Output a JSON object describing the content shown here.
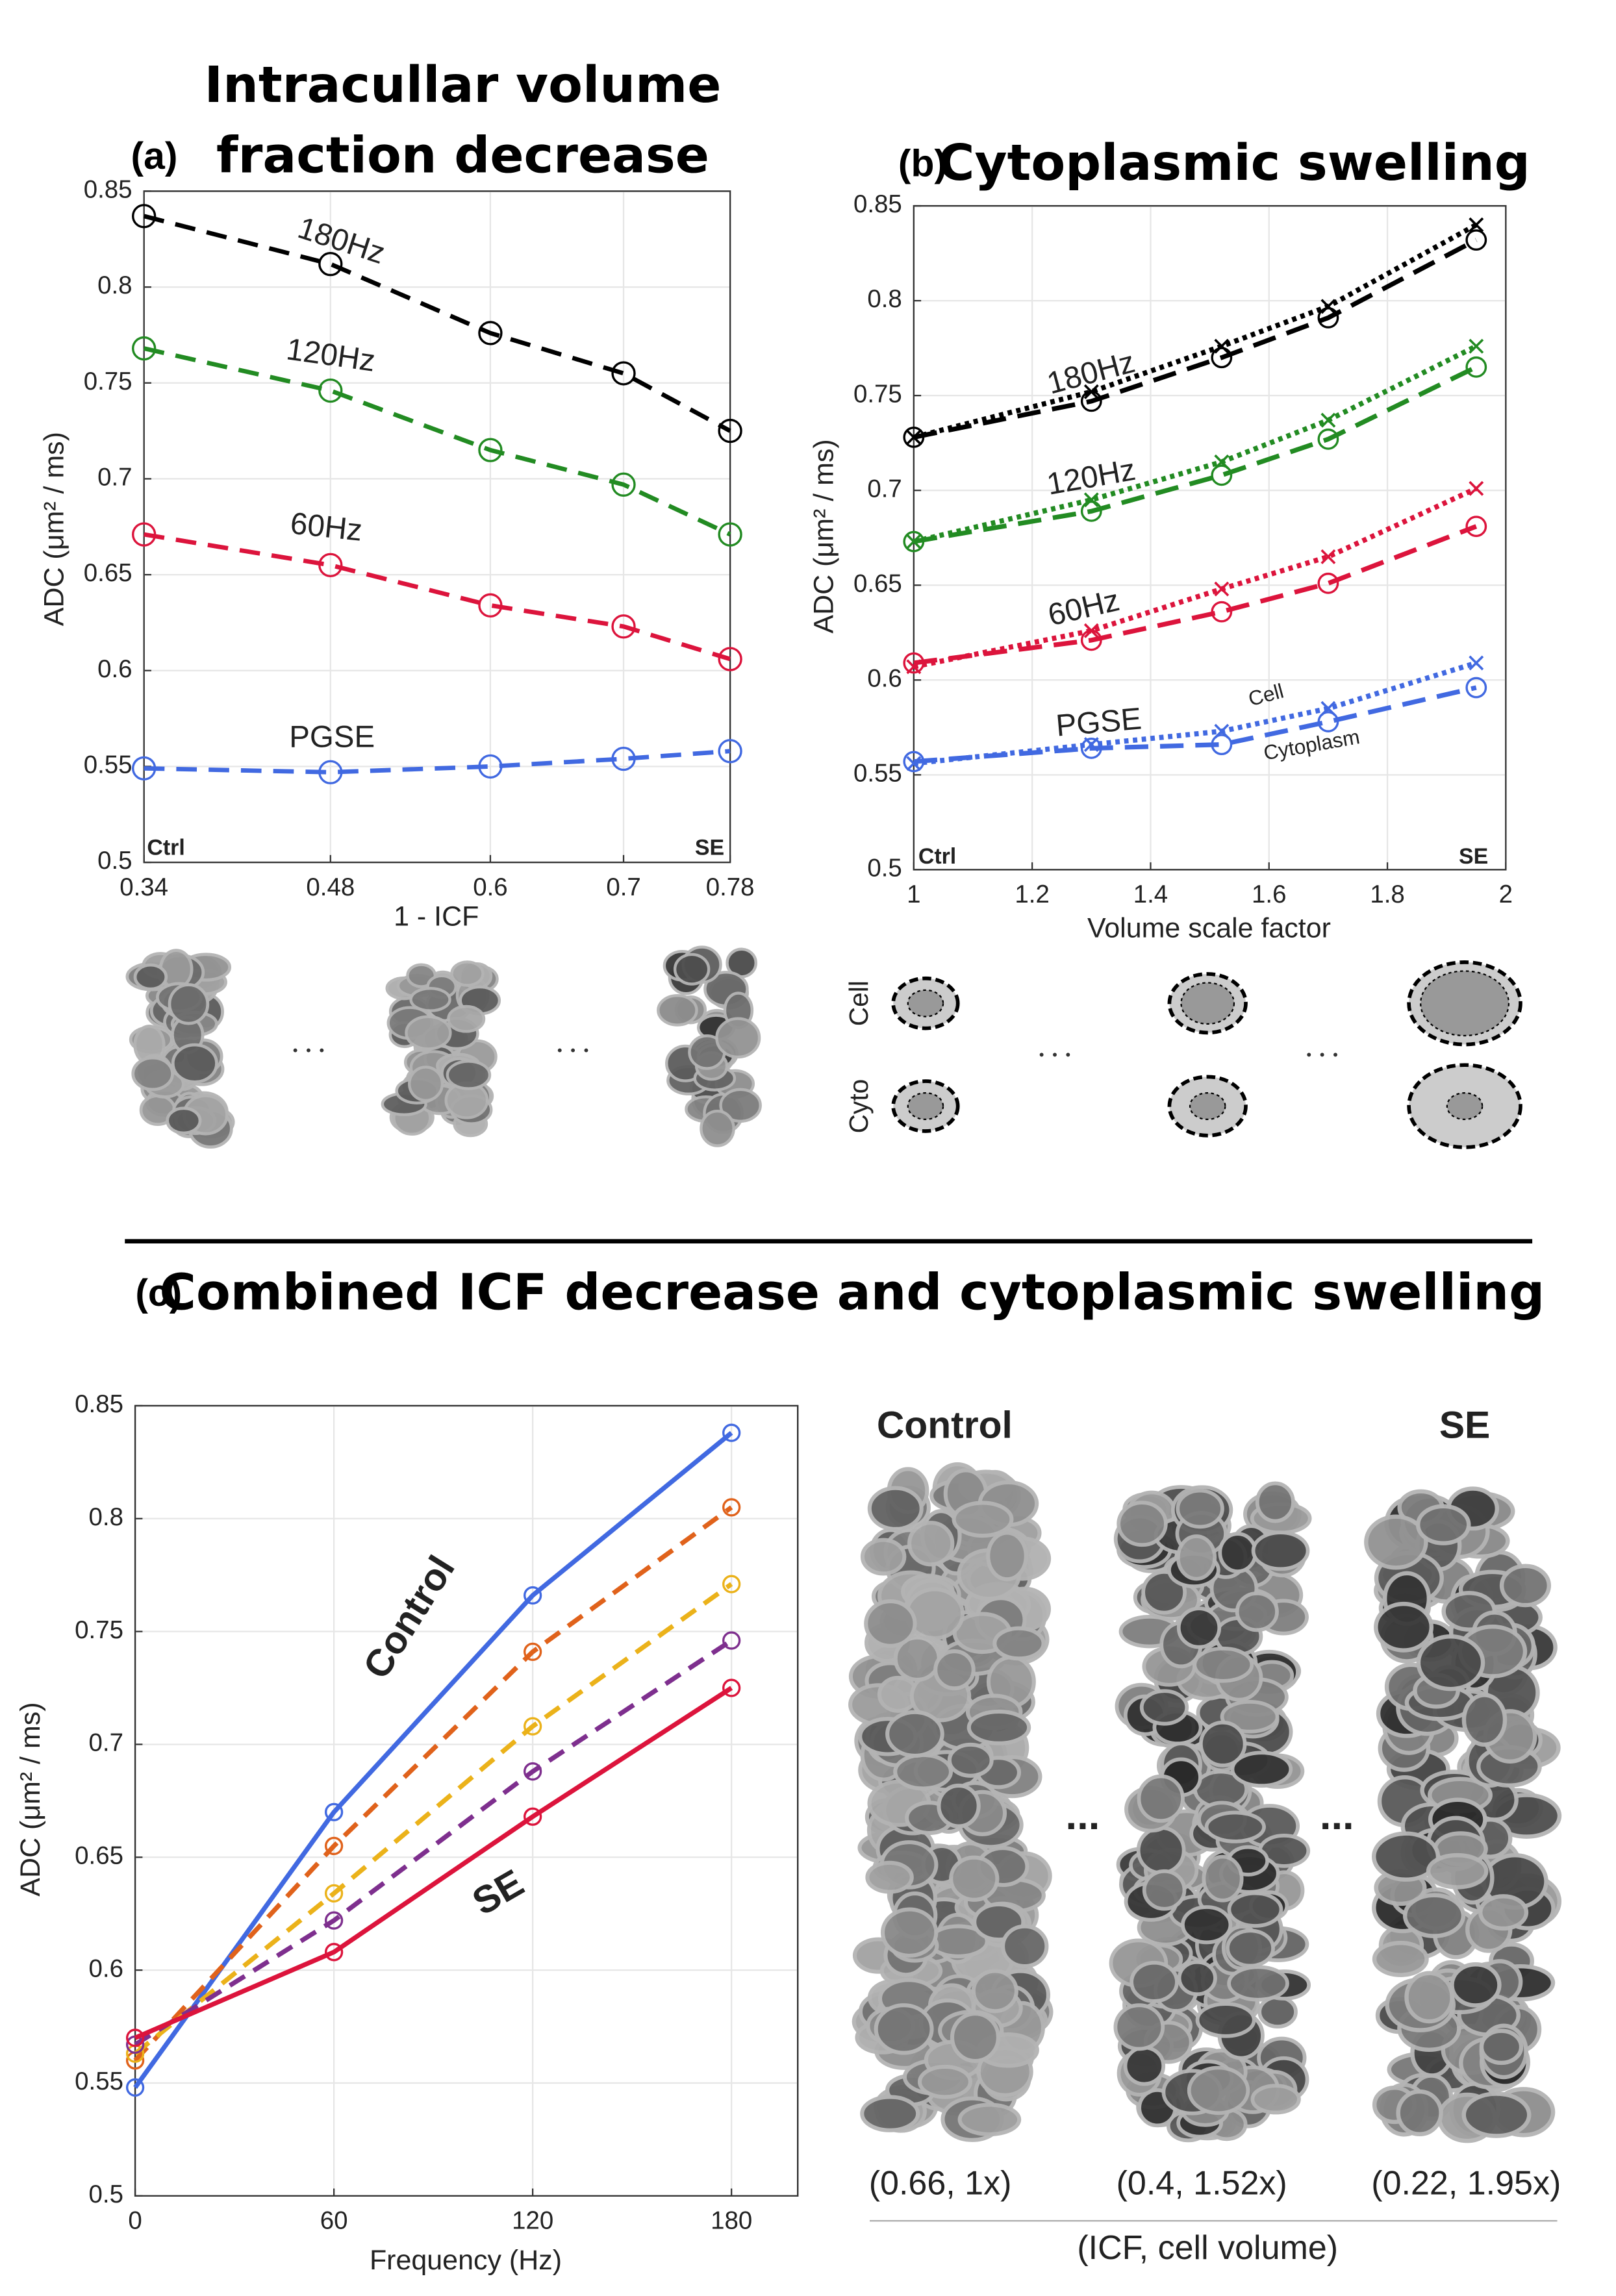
{
  "chart_data": [
    {
      "type": "line",
      "panel": "(a)",
      "title_lines": [
        "Intracullar volume",
        "fraction decrease"
      ],
      "xlabel": "1 - ICF",
      "ylabel": "ADC (μm² / ms)",
      "x": [
        0.34,
        0.48,
        0.6,
        0.7,
        0.78
      ],
      "xlim": [
        0.34,
        0.78
      ],
      "xticks": [
        0.34,
        0.48,
        0.6,
        0.7,
        0.78
      ],
      "ylim": [
        0.5,
        0.85
      ],
      "yticks": [
        0.5,
        0.55,
        0.6,
        0.65,
        0.7,
        0.75,
        0.8,
        0.85
      ],
      "grid": true,
      "annotations": [
        "Ctrl",
        "SE"
      ],
      "series": [
        {
          "name": "180Hz",
          "color": "#000000",
          "values": [
            0.837,
            0.812,
            0.776,
            0.755,
            0.725
          ]
        },
        {
          "name": "120Hz",
          "color": "#228b22",
          "values": [
            0.768,
            0.746,
            0.715,
            0.697,
            0.671
          ]
        },
        {
          "name": "60Hz",
          "color": "#dc143c",
          "values": [
            0.671,
            0.655,
            0.634,
            0.623,
            0.606
          ]
        },
        {
          "name": "PGSE",
          "color": "#4169e1",
          "values": [
            0.549,
            0.547,
            0.55,
            0.554,
            0.558
          ]
        }
      ]
    },
    {
      "type": "line-pair",
      "panel": "(b)",
      "title": "Cytoplasmic swelling",
      "xlabel": "Volume scale factor",
      "ylabel": "ADC (μm² / ms)",
      "x": [
        1,
        1.3,
        1.52,
        1.7,
        1.95
      ],
      "xlim": [
        1,
        2
      ],
      "xticks": [
        1,
        1.2,
        1.4,
        1.6,
        1.8,
        2
      ],
      "ylim": [
        0.5,
        0.85
      ],
      "yticks": [
        0.5,
        0.55,
        0.6,
        0.65,
        0.7,
        0.75,
        0.8,
        0.85
      ],
      "grid": true,
      "annotations": [
        "Ctrl",
        "SE",
        "Cell",
        "Cytoplasm"
      ],
      "series": [
        {
          "name": "180Hz",
          "color": "#000000",
          "cell_values": [
            0.728,
            0.752,
            0.776,
            0.797,
            0.84
          ],
          "cytoplasm_values": [
            0.728,
            0.747,
            0.77,
            0.791,
            0.832
          ]
        },
        {
          "name": "120Hz",
          "color": "#228b22",
          "cell_values": [
            0.673,
            0.695,
            0.715,
            0.737,
            0.776
          ],
          "cytoplasm_values": [
            0.673,
            0.689,
            0.708,
            0.727,
            0.765
          ]
        },
        {
          "name": "60Hz",
          "color": "#dc143c",
          "cell_values": [
            0.607,
            0.626,
            0.648,
            0.665,
            0.701
          ],
          "cytoplasm_values": [
            0.609,
            0.621,
            0.636,
            0.651,
            0.681
          ]
        },
        {
          "name": "PGSE",
          "color": "#4169e1",
          "cell_values": [
            0.556,
            0.566,
            0.573,
            0.585,
            0.609
          ],
          "cytoplasm_values": [
            0.557,
            0.564,
            0.566,
            0.578,
            0.596
          ]
        }
      ]
    },
    {
      "type": "line",
      "panel": "(c)",
      "title": "Combined ICF decrease and cytoplasmic swelling",
      "xlabel": "Frequency (Hz)",
      "ylabel": "ADC (μm² / ms)",
      "x": [
        0,
        60,
        120,
        180
      ],
      "xlim": [
        0,
        200
      ],
      "xticks": [
        0,
        60,
        120,
        180
      ],
      "ylim": [
        0.5,
        0.85
      ],
      "yticks": [
        0.5,
        0.55,
        0.6,
        0.65,
        0.7,
        0.75,
        0.8,
        0.85
      ],
      "grid": true,
      "series": [
        {
          "name": "Control",
          "color": "#4169e1",
          "dashed": false,
          "values": [
            0.548,
            0.67,
            0.766,
            0.838
          ]
        },
        {
          "name": null,
          "color": "#e0621b",
          "dashed": true,
          "values": [
            0.56,
            0.655,
            0.741,
            0.805
          ]
        },
        {
          "name": null,
          "color": "#ebb21a",
          "dashed": true,
          "values": [
            0.563,
            0.634,
            0.708,
            0.771
          ]
        },
        {
          "name": null,
          "color": "#7e2f8e",
          "dashed": true,
          "values": [
            0.567,
            0.622,
            0.688,
            0.746
          ]
        },
        {
          "name": "SE",
          "color": "#dc143c",
          "dashed": false,
          "values": [
            0.57,
            0.608,
            0.668,
            0.725
          ]
        }
      ]
    }
  ],
  "illustrations": {
    "b_rows": [
      "Cell",
      "Cyto"
    ],
    "c_headers": [
      "Control",
      "SE"
    ],
    "c_captions": [
      "(0.66, 1x)",
      "(0.4, 1.52x)",
      "(0.22, 1.95x)"
    ],
    "c_axis": "(ICF, cell volume)",
    "c_ellipsis": "..."
  }
}
